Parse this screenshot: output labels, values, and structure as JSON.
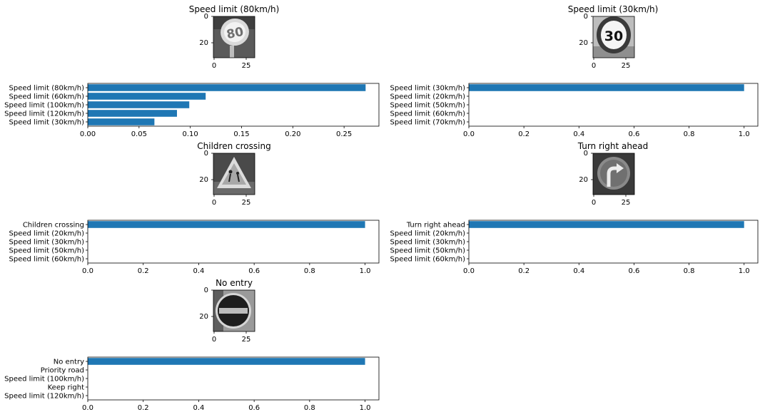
{
  "chart_data": [
    {
      "type": "image",
      "title": "Speed limit (80km/h)",
      "image_label": "Speed limit (80km/h)",
      "sign_text": "80",
      "sign_shape": "circle",
      "xticks": [
        "0",
        "25"
      ],
      "yticks": [
        "0",
        "20"
      ]
    },
    {
      "type": "bar",
      "orientation": "horizontal",
      "categories": [
        "Speed limit (80km/h)",
        "Speed limit (60km/h)",
        "Speed limit (100km/h)",
        "Speed limit (120km/h)",
        "Speed limit (30km/h)"
      ],
      "values": [
        0.271,
        0.115,
        0.099,
        0.087,
        0.065
      ],
      "xlim": [
        0,
        0.284
      ],
      "xticks": [
        "0.00",
        "0.05",
        "0.10",
        "0.15",
        "0.20",
        "0.25"
      ],
      "color": "#1f77b4"
    },
    {
      "type": "image",
      "title": "Speed limit (30km/h)",
      "image_label": "Speed limit (30km/h)",
      "sign_text": "30",
      "sign_shape": "circle",
      "xticks": [
        "0",
        "25"
      ],
      "yticks": [
        "0",
        "20"
      ]
    },
    {
      "type": "bar",
      "orientation": "horizontal",
      "categories": [
        "Speed limit (30km/h)",
        "Speed limit (20km/h)",
        "Speed limit (50km/h)",
        "Speed limit (60km/h)",
        "Speed limit (70km/h)"
      ],
      "values": [
        1.0,
        0,
        0,
        0,
        0
      ],
      "xlim": [
        0,
        1.05
      ],
      "xticks": [
        "0.0",
        "0.2",
        "0.4",
        "0.6",
        "0.8",
        "1.0"
      ],
      "color": "#1f77b4"
    },
    {
      "type": "image",
      "title": "Children crossing",
      "image_label": "Children crossing",
      "sign_text": "",
      "sign_shape": "triangle",
      "xticks": [
        "0",
        "25"
      ],
      "yticks": [
        "0",
        "20"
      ]
    },
    {
      "type": "bar",
      "orientation": "horizontal",
      "categories": [
        "Children crossing",
        "Speed limit (20km/h)",
        "Speed limit (30km/h)",
        "Speed limit (50km/h)",
        "Speed limit (60km/h)"
      ],
      "values": [
        1.0,
        0,
        0,
        0,
        0
      ],
      "xlim": [
        0,
        1.05
      ],
      "xticks": [
        "0.0",
        "0.2",
        "0.4",
        "0.6",
        "0.8",
        "1.0"
      ],
      "color": "#1f77b4"
    },
    {
      "type": "image",
      "title": "Turn right ahead",
      "image_label": "Turn right ahead",
      "sign_text": "",
      "sign_shape": "circle-arrow",
      "xticks": [
        "0",
        "25"
      ],
      "yticks": [
        "0",
        "20"
      ]
    },
    {
      "type": "bar",
      "orientation": "horizontal",
      "categories": [
        "Turn right ahead",
        "Speed limit (20km/h)",
        "Speed limit (30km/h)",
        "Speed limit (50km/h)",
        "Speed limit (60km/h)"
      ],
      "values": [
        1.0,
        0,
        0,
        0,
        0
      ],
      "xlim": [
        0,
        1.05
      ],
      "xticks": [
        "0.0",
        "0.2",
        "0.4",
        "0.6",
        "0.8",
        "1.0"
      ],
      "color": "#1f77b4"
    },
    {
      "type": "image",
      "title": "No entry",
      "image_label": "No entry",
      "sign_text": "",
      "sign_shape": "circle-bar",
      "xticks": [
        "0",
        "25"
      ],
      "yticks": [
        "0",
        "20"
      ]
    },
    {
      "type": "bar",
      "orientation": "horizontal",
      "categories": [
        "No entry",
        "Priority road",
        "Speed limit (100km/h)",
        "Keep right",
        "Speed limit (120km/h)"
      ],
      "values": [
        1.0,
        0,
        0,
        0,
        0
      ],
      "xlim": [
        0,
        1.05
      ],
      "xticks": [
        "0.0",
        "0.2",
        "0.4",
        "0.6",
        "0.8",
        "1.0"
      ],
      "color": "#1f77b4"
    }
  ]
}
